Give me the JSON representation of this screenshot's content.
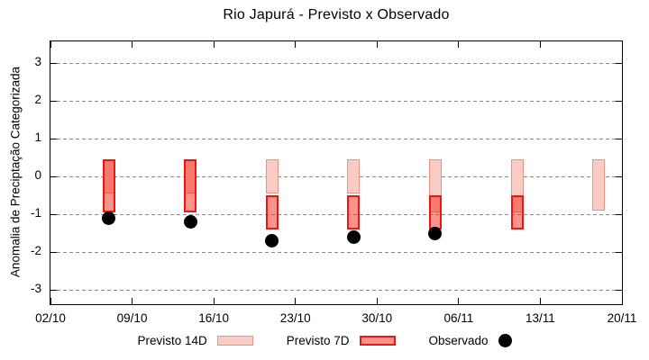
{
  "title": "Rio Japurá - Previsto x Observado",
  "chart_data": {
    "type": "bar",
    "subtype": "forecast-range-bars-with-observed-points",
    "title": "Rio Japurá - Previsto x Observado",
    "xlabel": "",
    "ylabel": "Anomalia de Preciptação Categorizada",
    "ylim": [
      -3.5,
      3.6
    ],
    "yticks": [
      3,
      2,
      1,
      0,
      -1,
      -2,
      -3
    ],
    "xtick_labels": [
      "02/10",
      "09/10",
      "16/10",
      "23/10",
      "30/10",
      "06/11",
      "13/11",
      "20/11"
    ],
    "xtick_days": [
      0,
      7,
      14,
      21,
      28,
      35,
      42,
      49
    ],
    "x_axis_span_days": 49,
    "grid": "horizontal dashed gray lines at integer values",
    "legend_position": "below plot",
    "colors": {
      "previsto_14d_fill": "#fbccc3",
      "previsto_14d_border": "#f0907e",
      "previsto_7d_fill": "#fa938c",
      "previsto_7d_fill_rgba": "rgba(245,40,25,0.5)",
      "previsto_7d_border": "#f01510",
      "observado": "#000000",
      "grid_color": "#8a8a8a",
      "axis_color": "#000000",
      "background": "#ffffff"
    },
    "legend": [
      {
        "label": "Previsto 14D",
        "key": "box",
        "fill": "#fbccc3",
        "border": "#f0907e"
      },
      {
        "label": "Previsto 7D",
        "key": "box",
        "fill": "#fa938c",
        "border": "#f01510"
      },
      {
        "label": "Observado",
        "key": "dot",
        "fill": "#000000"
      }
    ],
    "forecasts": [
      {
        "date": "07/10",
        "day": 5,
        "p14_high": 0.45,
        "p14_low": -0.45,
        "p7_high": 0.45,
        "p7_low": -0.95
      },
      {
        "date": "14/10",
        "day": 12,
        "p14_high": 0.45,
        "p14_low": -0.45,
        "p7_high": 0.45,
        "p7_low": -0.95
      },
      {
        "date": "21/10",
        "day": 19,
        "p14_high": 0.45,
        "p14_low": -0.45,
        "p7_high": -0.5,
        "p7_low": -1.4
      },
      {
        "date": "28/10",
        "day": 26,
        "p14_high": 0.45,
        "p14_low": -0.45,
        "p7_high": -0.5,
        "p7_low": -1.4
      },
      {
        "date": "04/11",
        "day": 33,
        "p14_high": 0.45,
        "p14_low": -0.95,
        "p7_high": -0.5,
        "p7_low": -1.4
      },
      {
        "date": "11/11",
        "day": 40,
        "p14_high": 0.45,
        "p14_low": -0.95,
        "p7_high": -0.5,
        "p7_low": -1.4
      },
      {
        "date": "18/11",
        "day": 47,
        "p14_high": 0.45,
        "p14_low": -0.9,
        "p7_high": null,
        "p7_low": null
      }
    ],
    "observado_points": [
      {
        "date": "07/10",
        "day": 5,
        "value": -1.1
      },
      {
        "date": "14/10",
        "day": 12,
        "value": -1.2
      },
      {
        "date": "21/10",
        "day": 19,
        "value": -1.7
      },
      {
        "date": "28/10",
        "day": 26,
        "value": -1.6
      },
      {
        "date": "04/11",
        "day": 33,
        "value": -1.5
      }
    ]
  }
}
